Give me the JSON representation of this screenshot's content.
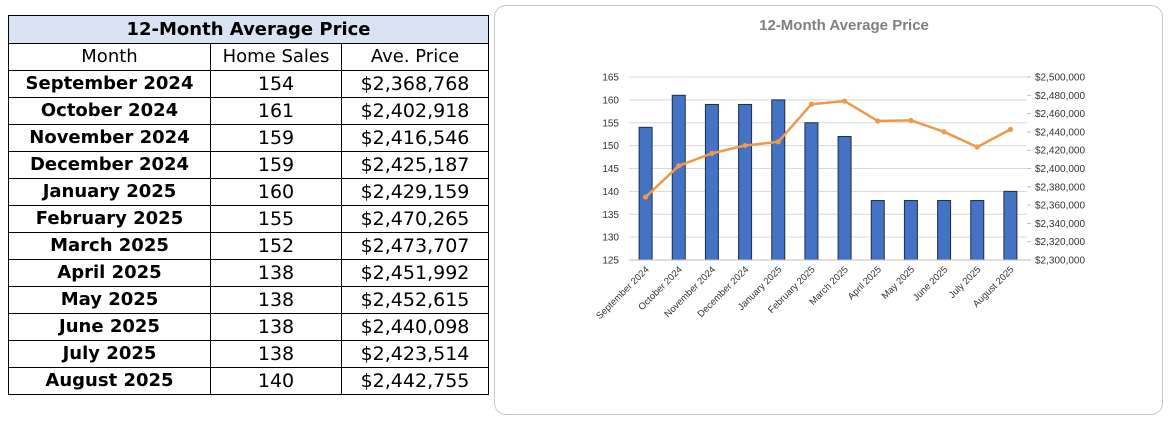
{
  "table": {
    "title": "12-Month Average Price",
    "headers": [
      "Month",
      "Home Sales",
      "Ave. Price"
    ],
    "rows": [
      {
        "month": "September 2024",
        "sales": "154",
        "price": "$2,368,768"
      },
      {
        "month": "October 2024",
        "sales": "161",
        "price": "$2,402,918"
      },
      {
        "month": "November 2024",
        "sales": "159",
        "price": "$2,416,546"
      },
      {
        "month": "December 2024",
        "sales": "159",
        "price": "$2,425,187"
      },
      {
        "month": "January 2025",
        "sales": "160",
        "price": "$2,429,159"
      },
      {
        "month": "February 2025",
        "sales": "155",
        "price": "$2,470,265"
      },
      {
        "month": "March 2025",
        "sales": "152",
        "price": "$2,473,707"
      },
      {
        "month": "April 2025",
        "sales": "138",
        "price": "$2,451,992"
      },
      {
        "month": "May 2025",
        "sales": "138",
        "price": "$2,452,615"
      },
      {
        "month": "June 2025",
        "sales": "138",
        "price": "$2,440,098"
      },
      {
        "month": "July 2025",
        "sales": "138",
        "price": "$2,423,514"
      },
      {
        "month": "August 2025",
        "sales": "140",
        "price": "$2,442,755"
      }
    ]
  },
  "chart_data": {
    "type": "bar",
    "title": "12-Month Average Price",
    "categories": [
      "September 2024",
      "October 2024",
      "November 2024",
      "December 2024",
      "January 2025",
      "February 2025",
      "March 2025",
      "April 2025",
      "May 2025",
      "June 2025",
      "July 2025",
      "August 2025"
    ],
    "series": [
      {
        "type": "bar",
        "axis": "left",
        "color": "#4472c4",
        "values": [
          154,
          161,
          159,
          159,
          160,
          155,
          152,
          138,
          138,
          138,
          138,
          140
        ]
      },
      {
        "type": "line",
        "axis": "right",
        "color": "#ed9a4a",
        "values": [
          2368768,
          2402918,
          2416546,
          2425187,
          2429159,
          2470265,
          2473707,
          2451992,
          2452615,
          2440098,
          2423514,
          2442755
        ]
      }
    ],
    "y_left": {
      "min": 125,
      "max": 165,
      "step": 5,
      "ticks": [
        "125",
        "130",
        "135",
        "140",
        "145",
        "150",
        "155",
        "160",
        "165"
      ]
    },
    "y_right": {
      "min": 2300000,
      "max": 2500000,
      "step": 20000,
      "ticks": [
        "$2,300,000",
        "$2,320,000",
        "$2,340,000",
        "$2,360,000",
        "$2,380,000",
        "$2,400,000",
        "$2,420,000",
        "$2,440,000",
        "$2,460,000",
        "$2,480,000",
        "$2,500,000"
      ]
    },
    "grid": true,
    "legend": "none",
    "xlabel": "",
    "ylabel": ""
  }
}
